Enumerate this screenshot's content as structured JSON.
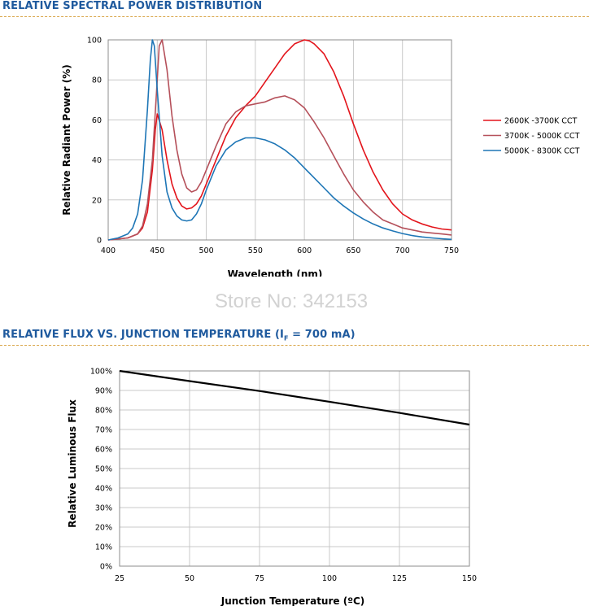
{
  "chart_data": [
    {
      "type": "line",
      "title": "RELATIVE SPECTRAL POWER DISTRIBUTION",
      "xlabel": "Wavelength (nm)",
      "ylabel": "Relative Radiant Power (%)",
      "xlim": [
        400,
        750
      ],
      "ylim": [
        0,
        100
      ],
      "xticks": [
        400,
        450,
        500,
        550,
        600,
        650,
        700,
        750
      ],
      "yticks": [
        0,
        20,
        40,
        60,
        80,
        100
      ],
      "grid": true,
      "legend_position": "right",
      "series": [
        {
          "name": "2600K -3700K CCT",
          "color": "#e3141b",
          "x": [
            400,
            420,
            430,
            435,
            440,
            445,
            448,
            450,
            455,
            460,
            465,
            470,
            475,
            480,
            485,
            490,
            495,
            500,
            510,
            520,
            530,
            540,
            550,
            560,
            570,
            580,
            590,
            600,
            605,
            610,
            620,
            630,
            640,
            650,
            660,
            670,
            680,
            690,
            700,
            710,
            720,
            730,
            740,
            750
          ],
          "y": [
            0,
            1,
            3,
            6,
            14,
            35,
            55,
            63,
            55,
            40,
            28,
            21,
            17,
            15.5,
            16,
            18,
            22,
            28,
            40,
            52,
            61,
            67,
            72,
            79,
            86,
            93,
            98,
            100,
            99.5,
            98,
            93,
            84,
            72,
            58,
            45,
            34,
            25,
            18,
            13,
            10,
            8,
            6.5,
            5.5,
            5
          ]
        },
        {
          "name": "3700K - 5000K CCT",
          "color": "#b5505a",
          "x": [
            400,
            420,
            430,
            435,
            440,
            445,
            450,
            452,
            455,
            460,
            465,
            470,
            475,
            480,
            485,
            490,
            495,
            500,
            510,
            520,
            530,
            540,
            550,
            560,
            570,
            580,
            590,
            600,
            610,
            620,
            630,
            640,
            650,
            660,
            670,
            680,
            690,
            700,
            710,
            720,
            730,
            740,
            750
          ],
          "y": [
            0,
            1,
            3,
            7,
            18,
            40,
            80,
            97,
            100,
            85,
            62,
            45,
            33,
            26,
            24,
            25,
            29,
            35,
            47,
            58,
            64,
            67,
            68,
            69,
            71,
            72,
            70,
            66,
            59,
            51,
            42,
            33,
            25,
            19,
            14,
            10,
            8,
            6,
            5,
            4,
            3.5,
            3,
            2.5
          ]
        },
        {
          "name": "5000K - 8300K CCT",
          "color": "#1e76b6",
          "x": [
            400,
            410,
            420,
            425,
            430,
            435,
            440,
            443,
            445,
            447,
            450,
            455,
            460,
            465,
            470,
            475,
            480,
            485,
            490,
            495,
            500,
            510,
            520,
            530,
            540,
            550,
            560,
            570,
            580,
            590,
            600,
            610,
            620,
            630,
            640,
            650,
            660,
            670,
            680,
            690,
            700,
            710,
            720,
            730,
            740,
            750
          ],
          "y": [
            0,
            1,
            3,
            6,
            13,
            30,
            65,
            90,
            100,
            97,
            75,
            42,
            24,
            16,
            12,
            10,
            9.5,
            10,
            13,
            18,
            25,
            37,
            45,
            49,
            51,
            51,
            50,
            48,
            45,
            41,
            36,
            31,
            26,
            21,
            17,
            13.5,
            10.5,
            8,
            6,
            4.5,
            3.2,
            2.2,
            1.5,
            1,
            0.6,
            0.3
          ]
        }
      ]
    },
    {
      "type": "line",
      "title": "RELATIVE FLUX VS. JUNCTION TEMPERATURE",
      "title_prefix": "RELATIVE FLUX VS. JUNCTION TEMPERATURE (I",
      "title_sub": "F",
      "title_suffix": " = 700 mA)",
      "xlabel": "Junction Temperature (ºC)",
      "ylabel": "Relative Luminous Flux",
      "xlim": [
        25,
        150
      ],
      "ylim": [
        0,
        100
      ],
      "xticks": [
        25,
        50,
        75,
        100,
        125,
        150
      ],
      "yticks": [
        "0%",
        "10%",
        "20%",
        "30%",
        "40%",
        "50%",
        "60%",
        "70%",
        "80%",
        "90%",
        "100%"
      ],
      "grid": true,
      "series": [
        {
          "color": "#000000",
          "x": [
            25,
            50,
            75,
            100,
            125,
            150
          ],
          "y": [
            100,
            94.8,
            89.7,
            84.2,
            78.5,
            72.5
          ]
        }
      ]
    }
  ],
  "watermark": "Store No: 342153"
}
